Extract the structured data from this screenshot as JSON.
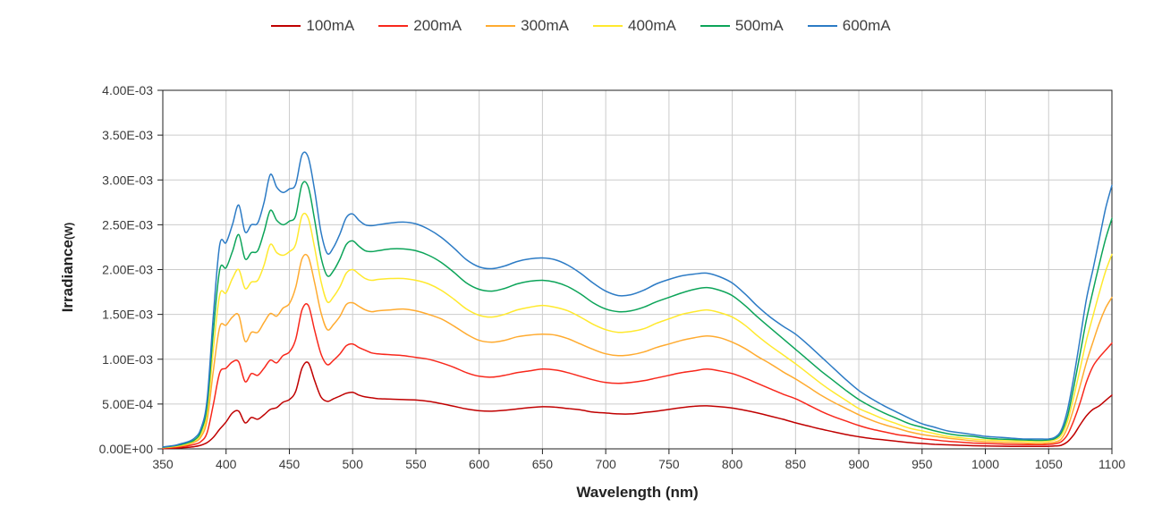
{
  "page": {
    "background": "#ffffff"
  },
  "chart_data": {
    "type": "line",
    "title": "",
    "xlabel": "Wavelength (nm)",
    "ylabel": "Irradiance",
    "ylabel_unit": "(W)",
    "legend_position": "top-center",
    "grid": true,
    "grid_color": "#cccccc",
    "border_color": "#1f1f1f",
    "tick_label_color": "#3a3a3a",
    "xlim": [
      350,
      1100
    ],
    "ylim": [
      0,
      0.004
    ],
    "x_ticks": [
      350,
      400,
      450,
      500,
      550,
      600,
      650,
      700,
      750,
      800,
      850,
      900,
      950,
      1000,
      1050,
      1100
    ],
    "y_ticks": [
      0,
      0.0005,
      0.001,
      0.0015,
      0.002,
      0.0025,
      0.003,
      0.0035,
      0.004
    ],
    "y_tick_labels": [
      "0.00E+00",
      "5.00E-04",
      "1.00E-03",
      "1.50E-03",
      "2.00E-03",
      "2.50E-03",
      "3.00E-03",
      "3.50E-03",
      "4.00E-03"
    ],
    "x": [
      350,
      355,
      360,
      365,
      370,
      375,
      380,
      385,
      390,
      395,
      400,
      405,
      410,
      415,
      420,
      425,
      430,
      435,
      440,
      445,
      450,
      455,
      460,
      465,
      470,
      475,
      480,
      485,
      490,
      495,
      500,
      505,
      510,
      515,
      520,
      530,
      540,
      550,
      560,
      570,
      580,
      590,
      600,
      610,
      620,
      630,
      640,
      650,
      660,
      670,
      680,
      690,
      700,
      710,
      720,
      730,
      740,
      750,
      760,
      770,
      780,
      790,
      800,
      810,
      820,
      830,
      840,
      850,
      860,
      870,
      880,
      890,
      900,
      910,
      920,
      930,
      940,
      950,
      960,
      970,
      980,
      990,
      1000,
      1010,
      1020,
      1030,
      1040,
      1045,
      1050,
      1055,
      1060,
      1065,
      1070,
      1075,
      1080,
      1085,
      1090,
      1095,
      1100
    ],
    "series": [
      {
        "name": "100mA",
        "color": "#c00000",
        "values": [
          4e-06,
          6e-06,
          8e-06,
          1.2e-05,
          1.7e-05,
          2.5e-05,
          4e-05,
          7e-05,
          0.00013,
          0.00022,
          0.0003,
          0.0004,
          0.00042,
          0.00029,
          0.00035,
          0.00033,
          0.00038,
          0.00044,
          0.00046,
          0.00052,
          0.00055,
          0.00064,
          0.0009,
          0.00096,
          0.00076,
          0.00058,
          0.00053,
          0.00056,
          0.00059,
          0.00062,
          0.00063,
          0.0006,
          0.00058,
          0.00057,
          0.00056,
          0.000555,
          0.00055,
          0.000545,
          0.00053,
          0.000505,
          0.000475,
          0.000445,
          0.000425,
          0.00042,
          0.00043,
          0.000445,
          0.00046,
          0.00047,
          0.000465,
          0.00045,
          0.000435,
          0.00041,
          0.0004,
          0.00039,
          0.00039,
          0.000405,
          0.00042,
          0.00044,
          0.00046,
          0.000475,
          0.00048,
          0.00047,
          0.000455,
          0.00043,
          0.0004,
          0.000365,
          0.00033,
          0.00029,
          0.000255,
          0.00022,
          0.00019,
          0.00016,
          0.000135,
          0.000115,
          0.0001,
          8.5e-05,
          7e-05,
          6e-05,
          5e-05,
          4.5e-05,
          4e-05,
          3.5e-05,
          3.2e-05,
          3e-05,
          2.8e-05,
          2.7e-05,
          2.7e-05,
          2.7e-05,
          2.8e-05,
          3.2e-05,
          4e-05,
          8e-05,
          0.00016,
          0.00027,
          0.00037,
          0.00044,
          0.00048,
          0.00054,
          0.0006
        ]
      },
      {
        "name": "200mA",
        "color": "#f8281c",
        "values": [
          8e-06,
          1.2e-05,
          1.7e-05,
          2.5e-05,
          3.5e-05,
          5e-05,
          8e-05,
          0.00018,
          0.0005,
          0.00085,
          0.0009,
          0.00097,
          0.00097,
          0.00075,
          0.00084,
          0.00082,
          0.0009,
          0.00099,
          0.00096,
          0.00104,
          0.00108,
          0.00122,
          0.00155,
          0.0016,
          0.00132,
          0.00106,
          0.00094,
          0.00099,
          0.00106,
          0.00115,
          0.00117,
          0.00113,
          0.0011,
          0.00107,
          0.00106,
          0.00105,
          0.00104,
          0.00102,
          0.001,
          0.00096,
          0.00091,
          0.00085,
          0.00081,
          0.0008,
          0.00082,
          0.00085,
          0.00087,
          0.00089,
          0.00088,
          0.00085,
          0.00081,
          0.00077,
          0.00074,
          0.00073,
          0.00074,
          0.00076,
          0.00079,
          0.00082,
          0.00085,
          0.00087,
          0.00089,
          0.00087,
          0.00084,
          0.00079,
          0.00073,
          0.00067,
          0.00061,
          0.00056,
          0.00049,
          0.00042,
          0.00036,
          0.00031,
          0.00026,
          0.00022,
          0.00019,
          0.00016,
          0.00014,
          0.000115,
          0.0001,
          8.5e-05,
          7.5e-05,
          6.5e-05,
          6e-05,
          5.5e-05,
          5e-05,
          4.8e-05,
          4.7e-05,
          4.7e-05,
          5e-05,
          5.7e-05,
          8e-05,
          0.00016,
          0.00032,
          0.00052,
          0.00075,
          0.00092,
          0.00102,
          0.0011,
          0.00118
        ]
      },
      {
        "name": "300mA",
        "color": "#ffab30",
        "values": [
          1.2e-05,
          1.8e-05,
          2.5e-05,
          3.5e-05,
          5e-05,
          7.5e-05,
          0.00013,
          0.00032,
          0.00088,
          0.00136,
          0.00138,
          0.00147,
          0.00149,
          0.0012,
          0.0013,
          0.0013,
          0.00141,
          0.00151,
          0.00148,
          0.00157,
          0.00162,
          0.0018,
          0.00212,
          0.00214,
          0.00185,
          0.00152,
          0.00133,
          0.00139,
          0.00148,
          0.00161,
          0.00163,
          0.00159,
          0.00155,
          0.00153,
          0.00154,
          0.00155,
          0.00156,
          0.00154,
          0.0015,
          0.00145,
          0.00137,
          0.00128,
          0.00121,
          0.00119,
          0.00121,
          0.00125,
          0.00127,
          0.00128,
          0.00127,
          0.00123,
          0.00117,
          0.00111,
          0.00106,
          0.00104,
          0.00105,
          0.00108,
          0.00113,
          0.00117,
          0.00121,
          0.00124,
          0.00126,
          0.00124,
          0.00119,
          0.00112,
          0.00103,
          0.00095,
          0.00086,
          0.00078,
          0.00069,
          0.0006,
          0.00052,
          0.00045,
          0.00038,
          0.00032,
          0.00027,
          0.00023,
          0.00019,
          0.00016,
          0.00014,
          0.00012,
          0.000105,
          9e-05,
          8e-05,
          7.5e-05,
          7e-05,
          6.5e-05,
          6e-05,
          6e-05,
          6.5e-05,
          7.5e-05,
          0.00011,
          0.00024,
          0.00046,
          0.00071,
          0.00097,
          0.00119,
          0.0014,
          0.00157,
          0.00169
        ]
      },
      {
        "name": "400mA",
        "color": "#ffe92e",
        "values": [
          1.5e-05,
          2.2e-05,
          3e-05,
          4.2e-05,
          6e-05,
          9e-05,
          0.00016,
          0.0004,
          0.00112,
          0.00172,
          0.00174,
          0.0019,
          0.002,
          0.00179,
          0.00186,
          0.00188,
          0.00205,
          0.00228,
          0.00219,
          0.00216,
          0.0022,
          0.00228,
          0.0026,
          0.00257,
          0.00224,
          0.00187,
          0.00164,
          0.0017,
          0.00181,
          0.00196,
          0.002,
          0.00195,
          0.0019,
          0.00188,
          0.00189,
          0.0019,
          0.0019,
          0.00188,
          0.00184,
          0.00177,
          0.00167,
          0.00156,
          0.00149,
          0.00147,
          0.0015,
          0.00155,
          0.00158,
          0.0016,
          0.00158,
          0.00154,
          0.00147,
          0.00139,
          0.00133,
          0.0013,
          0.00131,
          0.00134,
          0.0014,
          0.00145,
          0.0015,
          0.00153,
          0.00155,
          0.00152,
          0.00147,
          0.00138,
          0.00126,
          0.00115,
          0.00105,
          0.00095,
          0.00084,
          0.00073,
          0.00063,
          0.00054,
          0.00045,
          0.00039,
          0.00033,
          0.00028,
          0.00023,
          0.0002,
          0.00017,
          0.00014,
          0.000125,
          0.00011,
          0.0001,
          9.5e-05,
          9e-05,
          8.5e-05,
          8e-05,
          8e-05,
          8.5e-05,
          0.0001,
          0.00015,
          0.00031,
          0.00059,
          0.0009,
          0.00122,
          0.00148,
          0.00174,
          0.00198,
          0.00217
        ]
      },
      {
        "name": "500mA",
        "color": "#0ca459",
        "values": [
          1.8e-05,
          2.6e-05,
          3.6e-05,
          5e-05,
          7e-05,
          0.0001,
          0.00019,
          0.00048,
          0.00132,
          0.002,
          0.00202,
          0.0022,
          0.00239,
          0.00212,
          0.00219,
          0.00221,
          0.00242,
          0.00266,
          0.00255,
          0.0025,
          0.00254,
          0.0026,
          0.00295,
          0.00292,
          0.00255,
          0.00214,
          0.00193,
          0.00199,
          0.00212,
          0.00228,
          0.00232,
          0.00226,
          0.00221,
          0.0022,
          0.00221,
          0.00223,
          0.00223,
          0.00221,
          0.00216,
          0.00208,
          0.00197,
          0.00185,
          0.00178,
          0.00176,
          0.00179,
          0.00184,
          0.00187,
          0.00188,
          0.00186,
          0.00181,
          0.00173,
          0.00163,
          0.00156,
          0.00153,
          0.00154,
          0.00158,
          0.00164,
          0.00169,
          0.00174,
          0.00178,
          0.0018,
          0.00177,
          0.00171,
          0.0016,
          0.00147,
          0.00135,
          0.00123,
          0.00111,
          0.00099,
          0.00087,
          0.00076,
          0.00065,
          0.00055,
          0.00047,
          0.0004,
          0.00034,
          0.00028,
          0.00024,
          0.0002,
          0.00017,
          0.00015,
          0.00014,
          0.00012,
          0.00011,
          0.000105,
          0.0001,
          9.5e-05,
          9.5e-05,
          0.0001,
          0.000115,
          0.00018,
          0.00037,
          0.0007,
          0.00107,
          0.00145,
          0.00176,
          0.00206,
          0.00234,
          0.00257
        ]
      },
      {
        "name": "600mA",
        "color": "#2c7bc5",
        "values": [
          2e-05,
          3e-05,
          4e-05,
          6e-05,
          8e-05,
          0.00012,
          0.00022,
          0.00055,
          0.0015,
          0.00228,
          0.0023,
          0.0025,
          0.00272,
          0.00242,
          0.0025,
          0.00252,
          0.00275,
          0.00306,
          0.00292,
          0.00286,
          0.0029,
          0.00295,
          0.00328,
          0.00325,
          0.00288,
          0.00242,
          0.00218,
          0.00225,
          0.0024,
          0.00258,
          0.00262,
          0.00255,
          0.0025,
          0.00249,
          0.0025,
          0.00252,
          0.00253,
          0.00251,
          0.00245,
          0.00236,
          0.00224,
          0.00211,
          0.00203,
          0.00201,
          0.00204,
          0.00209,
          0.00212,
          0.00213,
          0.00211,
          0.00205,
          0.00196,
          0.00185,
          0.00176,
          0.00171,
          0.00172,
          0.00177,
          0.00184,
          0.00189,
          0.00193,
          0.00195,
          0.00196,
          0.00192,
          0.00185,
          0.00173,
          0.00159,
          0.00147,
          0.00137,
          0.00128,
          0.00116,
          0.00103,
          0.0009,
          0.00077,
          0.00065,
          0.00056,
          0.00048,
          0.00041,
          0.00034,
          0.00028,
          0.00024,
          0.0002,
          0.00018,
          0.00016,
          0.00014,
          0.00013,
          0.00012,
          0.00011,
          0.00011,
          0.00011,
          0.00011,
          0.00013,
          0.00021,
          0.00044,
          0.00081,
          0.00124,
          0.00168,
          0.002,
          0.00234,
          0.00268,
          0.00294
        ]
      }
    ]
  }
}
